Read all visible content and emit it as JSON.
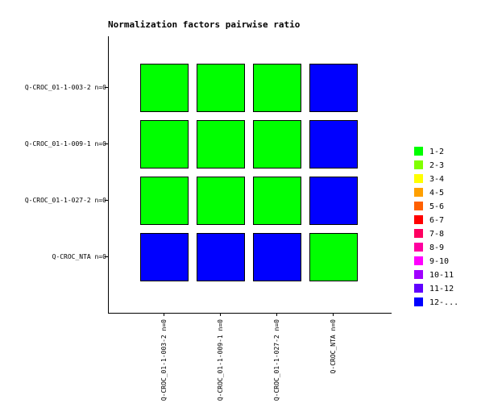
{
  "chart_data": {
    "type": "heatmap",
    "title": "Normalization factors pairwise ratio",
    "rows": [
      "Q-CROC_01-1-003-2 n=0",
      "Q-CROC_01-1-009-1 n=0",
      "Q-CROC_01-1-027-2 n=0",
      "Q-CROC_NTA n=0"
    ],
    "columns": [
      "Q-CROC_01-1-003-2 n=0",
      "Q-CROC_01-1-009-1 n=0",
      "Q-CROC_01-1-027-2 n=0",
      "Q-CROC_NTA n=0"
    ],
    "values": [
      [
        1,
        1,
        1,
        12
      ],
      [
        1,
        1,
        1,
        12
      ],
      [
        1,
        1,
        1,
        12
      ],
      [
        12,
        12,
        12,
        1
      ]
    ],
    "legend": [
      {
        "label": "1-2",
        "from": 1,
        "color": "#00ff00"
      },
      {
        "label": "2-3",
        "from": 2,
        "color": "#80ff00"
      },
      {
        "label": "3-4",
        "from": 3,
        "color": "#ffff00"
      },
      {
        "label": "4-5",
        "from": 4,
        "color": "#ffa000"
      },
      {
        "label": "5-6",
        "from": 5,
        "color": "#ff6000"
      },
      {
        "label": "6-7",
        "from": 6,
        "color": "#ff0000"
      },
      {
        "label": "7-8",
        "from": 7,
        "color": "#ff0060"
      },
      {
        "label": "8-9",
        "from": 8,
        "color": "#ff00a0"
      },
      {
        "label": "9-10",
        "from": 9,
        "color": "#ff00ff"
      },
      {
        "label": "10-11",
        "from": 10,
        "color": "#a000ff"
      },
      {
        "label": "11-12",
        "from": 11,
        "color": "#6000ff"
      },
      {
        "label": "12-...",
        "from": 12,
        "color": "#0000ff"
      }
    ]
  }
}
